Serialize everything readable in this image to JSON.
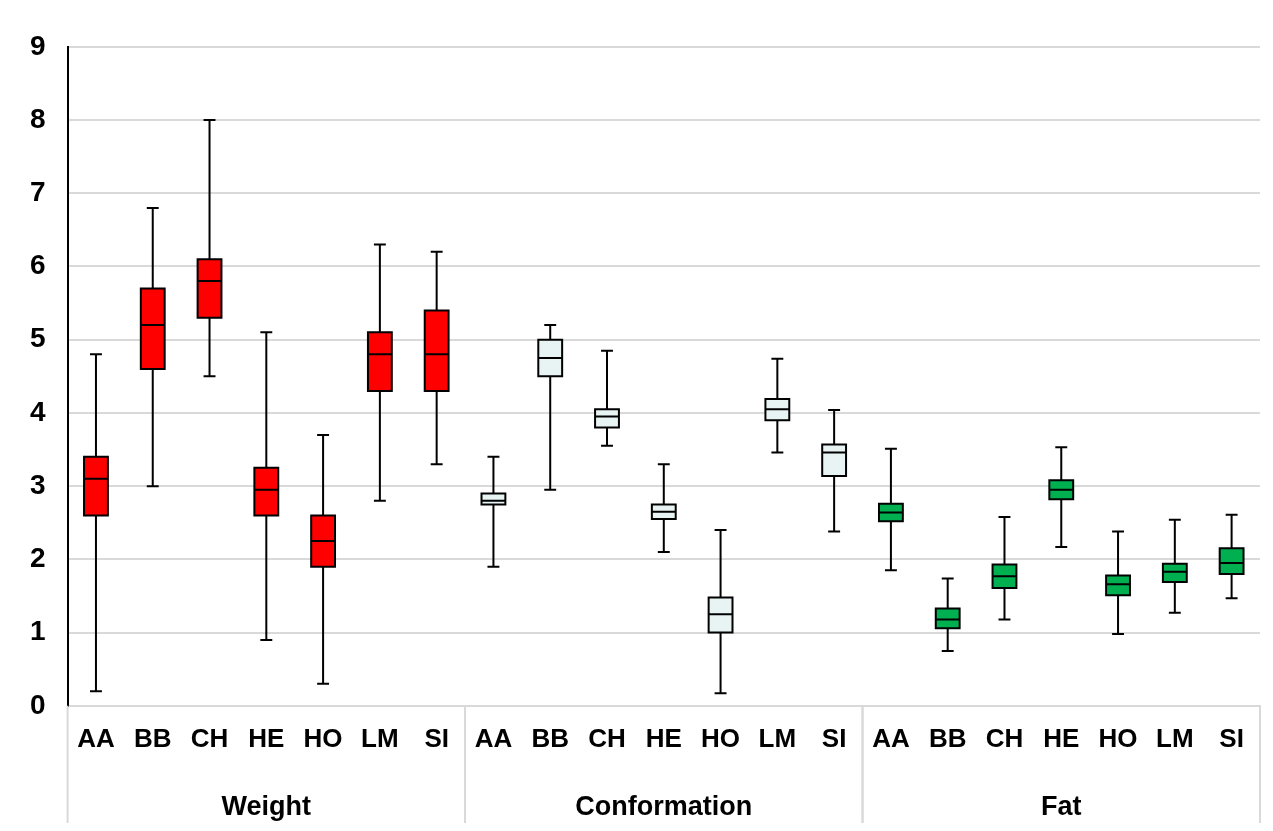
{
  "chart_data": {
    "type": "box",
    "categories": [
      "AA",
      "BB",
      "CH",
      "HE",
      "HO",
      "LM",
      "SI",
      "AA",
      "BB",
      "CH",
      "HE",
      "HO",
      "LM",
      "SI",
      "AA",
      "BB",
      "CH",
      "HE",
      "HO",
      "LM",
      "SI"
    ],
    "annotations": [
      "Weight",
      "Conformation",
      "Fat"
    ],
    "ylim": [
      0,
      9
    ],
    "yticks": [
      0,
      1,
      2,
      3,
      4,
      5,
      6,
      7,
      8,
      9
    ],
    "grid": "y",
    "legend": false,
    "series": [
      {
        "color": "#ff0000",
        "boxes": [
          {
            "low": 0.2,
            "q1": 2.6,
            "median": 3.1,
            "q3": 3.4,
            "high": 4.8
          },
          {
            "low": 3.0,
            "q1": 4.6,
            "median": 5.2,
            "q3": 5.7,
            "high": 6.8
          },
          {
            "low": 4.5,
            "q1": 5.3,
            "median": 5.8,
            "q3": 6.1,
            "high": 8.0
          },
          {
            "low": 0.9,
            "q1": 2.6,
            "median": 2.95,
            "q3": 3.25,
            "high": 5.1
          },
          {
            "low": 0.3,
            "q1": 1.9,
            "median": 2.25,
            "q3": 2.6,
            "high": 3.7
          },
          {
            "low": 2.8,
            "q1": 4.3,
            "median": 4.8,
            "q3": 5.1,
            "high": 6.3
          },
          {
            "low": 3.3,
            "q1": 4.3,
            "median": 4.8,
            "q3": 5.4,
            "high": 6.2
          },
          null,
          null,
          null,
          null,
          null,
          null,
          null,
          null,
          null,
          null,
          null,
          null,
          null,
          null
        ]
      },
      {
        "color": "#e8f4f4",
        "boxes": [
          null,
          null,
          null,
          null,
          null,
          null,
          null,
          {
            "low": 1.9,
            "q1": 2.75,
            "median": 2.8,
            "q3": 2.9,
            "high": 3.4
          },
          {
            "low": 2.95,
            "q1": 4.5,
            "median": 4.75,
            "q3": 5.0,
            "high": 5.2
          },
          {
            "low": 3.55,
            "q1": 3.8,
            "median": 3.95,
            "q3": 4.05,
            "high": 4.85
          },
          {
            "low": 2.1,
            "q1": 2.55,
            "median": 2.65,
            "q3": 2.75,
            "high": 3.3
          },
          {
            "low": 0.17,
            "q1": 1.0,
            "median": 1.25,
            "q3": 1.48,
            "high": 2.4
          },
          {
            "low": 3.46,
            "q1": 3.9,
            "median": 4.05,
            "q3": 4.19,
            "high": 4.74
          },
          {
            "low": 2.38,
            "q1": 3.14,
            "median": 3.46,
            "q3": 3.57,
            "high": 4.04
          },
          null,
          null,
          null,
          null,
          null,
          null,
          null
        ]
      },
      {
        "color": "#00b050",
        "boxes": [
          null,
          null,
          null,
          null,
          null,
          null,
          null,
          null,
          null,
          null,
          null,
          null,
          null,
          null,
          {
            "low": 1.85,
            "q1": 2.52,
            "median": 2.64,
            "q3": 2.76,
            "high": 3.51
          },
          {
            "low": 0.75,
            "q1": 1.06,
            "median": 1.18,
            "q3": 1.33,
            "high": 1.74
          },
          {
            "low": 1.18,
            "q1": 1.61,
            "median": 1.77,
            "q3": 1.93,
            "high": 2.58
          },
          {
            "low": 2.17,
            "q1": 2.82,
            "median": 2.95,
            "q3": 3.08,
            "high": 3.53
          },
          {
            "low": 0.98,
            "q1": 1.51,
            "median": 1.66,
            "q3": 1.78,
            "high": 2.38
          },
          {
            "low": 1.27,
            "q1": 1.69,
            "median": 1.83,
            "q3": 1.94,
            "high": 2.54
          },
          {
            "low": 1.47,
            "q1": 1.8,
            "median": 1.95,
            "q3": 2.15,
            "high": 2.61
          }
        ]
      }
    ]
  }
}
